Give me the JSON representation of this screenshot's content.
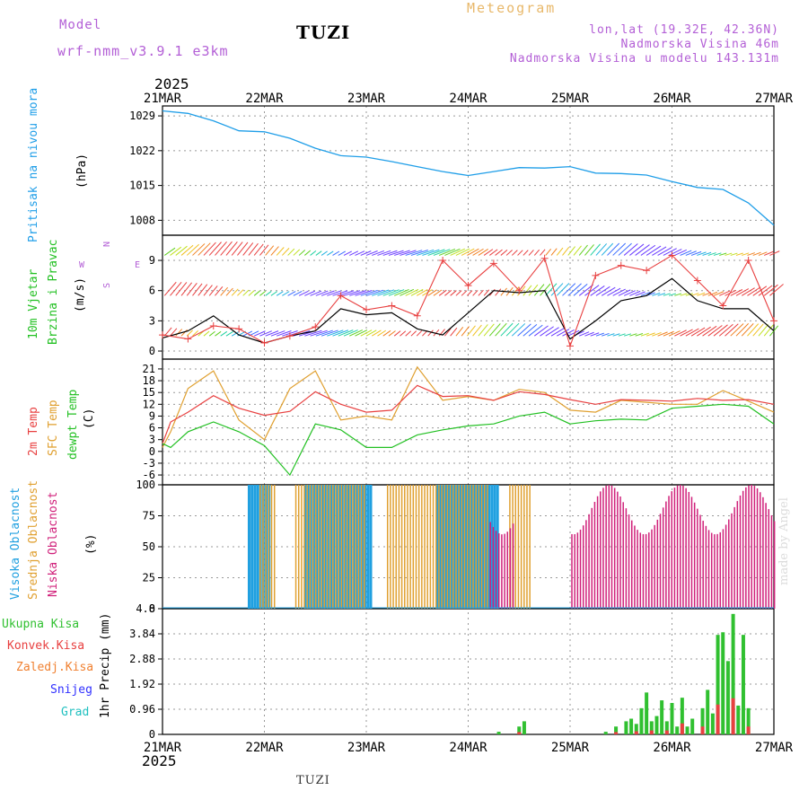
{
  "header": {
    "model_label": "Model",
    "model_name": "wrf-nmm_v3.9.1 e3km",
    "station": "TUZI",
    "chart_title": "Meteogram",
    "lonlat": "lon,lat (19.32E, 42.36N)",
    "elevation": "Nadmorska Visina 46m",
    "model_elevation": "Nadmorska Visina u modelu 143.131m"
  },
  "footer": {
    "station": "TUZI",
    "credit": "made by Angel"
  },
  "colors": {
    "pressure": "#1f9ee8",
    "temp2m": "#e84040",
    "sfc_temp": "#e0a030",
    "dewpoint": "#22c022",
    "wind_black": "#000000",
    "gust": "#e84040",
    "high_cloud": "#20a0e0",
    "mid_cloud": "#e0a030",
    "low_cloud": "#d0207a",
    "total_precip": "#30c030",
    "conv_precip": "#e84040",
    "frozen_precip": "#f08030",
    "snow": "#3030ff",
    "hail": "#20c0c0",
    "label_purple": "#b35fd6"
  },
  "chart_data": [
    {
      "type": "line",
      "id": "pressure",
      "ylabel_main": "Pritisak na nivou mora",
      "ylabel_unit": "(hPa)",
      "x_days": [
        0,
        0.25,
        0.5,
        0.75,
        1,
        1.25,
        1.5,
        1.75,
        2,
        2.25,
        2.5,
        2.75,
        3,
        3.25,
        3.5,
        3.75,
        4,
        4.25,
        4.5,
        4.75,
        5,
        5.25,
        5.5,
        5.75,
        6
      ],
      "values": [
        1030,
        1029.5,
        1028,
        1026,
        1025.8,
        1024.5,
        1022.5,
        1021,
        1020.7,
        1019.8,
        1018.8,
        1017.8,
        1017,
        1017.8,
        1018.6,
        1018.5,
        1018.8,
        1017.5,
        1017.4,
        1017.1,
        1015.8,
        1014.6,
        1014.2,
        1011.5,
        1007
      ],
      "yticks": [
        1008,
        1015,
        1022,
        1029
      ],
      "ylim": [
        1005,
        1031
      ]
    },
    {
      "type": "line",
      "id": "wind",
      "ylabel_main": "10m Vjetar",
      "ylabel_sub": "Brzina i Pravac",
      "ylabel_unit": "(m/s)",
      "compass_labels": [
        "N",
        "W",
        "E",
        "S"
      ],
      "yticks": [
        0,
        3,
        6,
        9
      ],
      "ylim": [
        -0.8,
        11.5
      ],
      "series": [
        {
          "name": "wind speed",
          "x": [
            0,
            0.25,
            0.5,
            0.75,
            1,
            1.25,
            1.5,
            1.75,
            2,
            2.25,
            2.5,
            2.75,
            3,
            3.25,
            3.5,
            3.75,
            4,
            4.25,
            4.5,
            4.75,
            5,
            5.25,
            5.5,
            5.75,
            6
          ],
          "values": [
            1.3,
            2,
            3.5,
            1.6,
            0.8,
            1.5,
            2,
            4.2,
            3.6,
            3.8,
            2.2,
            1.6,
            3.8,
            6,
            5.8,
            6,
            1.2,
            3,
            5,
            5.5,
            7.2,
            5,
            4.2,
            4.2,
            2
          ]
        },
        {
          "name": "gust",
          "x": [
            0,
            0.25,
            0.5,
            0.75,
            1,
            1.25,
            1.5,
            1.75,
            2,
            2.25,
            2.5,
            2.75,
            3,
            3.25,
            3.5,
            3.75,
            4,
            4.25,
            4.5,
            4.75,
            5,
            5.25,
            5.5,
            5.75,
            6
          ],
          "values": [
            1.6,
            1.2,
            2.5,
            2.2,
            0.8,
            1.5,
            2.4,
            5.5,
            4.1,
            4.5,
            3.5,
            9,
            6.5,
            8.7,
            6,
            9.2,
            0.5,
            7.5,
            8.5,
            8,
            9.5,
            7,
            4.5,
            9,
            3
          ]
        }
      ],
      "barb_rows": [
        9.5,
        5.5,
        1.5
      ]
    },
    {
      "type": "line",
      "id": "temperature",
      "ylabel_lines": [
        "2m Temp",
        "SFC Temp",
        "dewpt Temp"
      ],
      "ylabel_unit": "(C)",
      "yticks": [
        -6,
        -3,
        0,
        3,
        6,
        9,
        12,
        15,
        18,
        21
      ],
      "ylim": [
        -8.5,
        23.5
      ],
      "series": [
        {
          "name": "2m Temp",
          "x": [
            0,
            0.08,
            0.25,
            0.5,
            0.75,
            1,
            1.25,
            1.5,
            1.75,
            2,
            2.25,
            2.5,
            2.75,
            3,
            3.25,
            3.5,
            3.75,
            4,
            4.25,
            4.5,
            4.75,
            5,
            5.25,
            5.5,
            5.75,
            6
          ],
          "values": [
            2,
            7.5,
            10,
            14.2,
            11,
            9.2,
            10.2,
            15.2,
            12,
            10,
            10.5,
            16.8,
            14,
            14.2,
            13,
            15.2,
            14.5,
            13.2,
            12,
            13.2,
            13,
            12.8,
            13.5,
            13,
            13.2,
            12
          ]
        },
        {
          "name": "SFC Temp",
          "x": [
            0,
            0.08,
            0.25,
            0.5,
            0.75,
            1,
            1.25,
            1.5,
            1.75,
            2,
            2.25,
            2.5,
            2.75,
            3,
            3.25,
            3.5,
            3.75,
            4,
            4.25,
            4.5,
            4.75,
            5,
            5.25,
            5.5,
            5.75,
            6
          ],
          "values": [
            1,
            5,
            16,
            20.5,
            8,
            3,
            16,
            20.5,
            8,
            9,
            8,
            21.5,
            13,
            14,
            13,
            15.8,
            15,
            10.5,
            10,
            13,
            12.5,
            12,
            12,
            15.5,
            12.8,
            10
          ]
        },
        {
          "name": "dewpt Temp",
          "x": [
            0,
            0.08,
            0.25,
            0.5,
            0.75,
            1,
            1.25,
            1.5,
            1.75,
            2,
            2.25,
            2.5,
            2.75,
            3,
            3.25,
            3.5,
            3.75,
            4,
            4.25,
            4.5,
            4.75,
            5,
            5.25,
            5.5,
            5.75,
            6
          ],
          "values": [
            2,
            1,
            5,
            7.5,
            5,
            1.5,
            -6,
            7,
            5.5,
            1,
            1,
            4.2,
            5.5,
            6.5,
            7,
            9,
            10,
            7,
            7.8,
            8.2,
            8,
            11,
            11.5,
            12,
            11.5,
            7
          ]
        }
      ]
    },
    {
      "type": "bar",
      "id": "clouds",
      "ylabel_lines": [
        "Visoka Oblacnost",
        "Srednja Oblacnost",
        "Niska Oblacnost"
      ],
      "ylabel_unit": "(%)",
      "yticks": [
        0,
        25,
        50,
        75,
        100
      ],
      "ylim": [
        0,
        100
      ],
      "series": [
        {
          "name": "Visoka Oblacnost",
          "segments_days": [
            [
              0.85,
              1.05
            ],
            [
              1.4,
              2.05
            ],
            [
              2.7,
              3.3
            ]
          ]
        },
        {
          "name": "Srednja Oblacnost",
          "segments_days": [
            [
              0.95,
              1.1
            ],
            [
              1.3,
              2.0
            ],
            [
              2.2,
              3.2
            ],
            [
              3.4,
              3.6
            ]
          ]
        },
        {
          "name": "Niska Oblacnost",
          "segments_days": [
            [
              3.2,
              3.45
            ],
            [
              4.0,
              6.0
            ]
          ]
        }
      ]
    },
    {
      "type": "bar",
      "id": "precip",
      "legend": [
        "Ukupna Kisa",
        "Konvek.Kisa",
        "Zaledj.Kisa",
        "Snijeg",
        "Grad"
      ],
      "ylabel_unit": "1hr Precip (mm)",
      "yticks": [
        "0",
        "0.96",
        "1.92",
        "2.88",
        "3.84",
        "4.8"
      ],
      "ylim": [
        0,
        4.8
      ],
      "x_days": [
        3.3,
        3.5,
        3.55,
        4.35,
        4.45,
        4.55,
        4.6,
        4.65,
        4.7,
        4.75,
        4.8,
        4.85,
        4.9,
        4.95,
        5.0,
        5.05,
        5.1,
        5.15,
        5.2,
        5.3,
        5.35,
        5.4,
        5.45,
        5.5,
        5.55,
        5.6,
        5.65,
        5.7,
        5.75
      ],
      "values": [
        0.1,
        0.3,
        0.5,
        0.1,
        0.3,
        0.5,
        0.6,
        0.4,
        1.0,
        1.6,
        0.5,
        0.7,
        1.3,
        0.5,
        1.2,
        0.3,
        1.4,
        0.3,
        0.6,
        1.0,
        1.7,
        0.8,
        3.8,
        3.9,
        2.8,
        4.6,
        1.1,
        3.8,
        1.0
      ]
    }
  ],
  "x_axis": {
    "year_label": "2025",
    "ticks": [
      "21MAR",
      "22MAR",
      "23MAR",
      "24MAR",
      "25MAR",
      "26MAR",
      "27MAR"
    ]
  }
}
